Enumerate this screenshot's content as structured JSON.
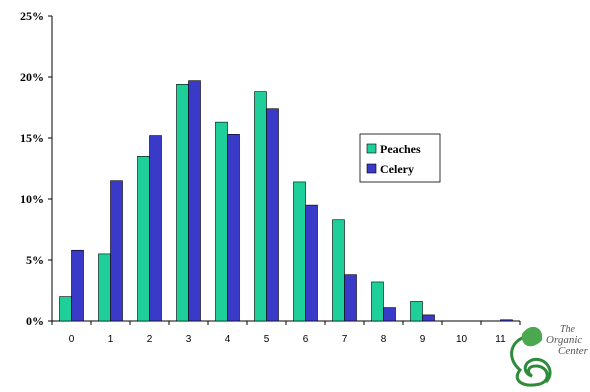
{
  "chart_data": {
    "type": "bar",
    "categories": [
      "0",
      "1",
      "2",
      "3",
      "4",
      "5",
      "6",
      "7",
      "8",
      "9",
      "10",
      "11"
    ],
    "series": [
      {
        "name": "Peaches",
        "color": "#1ecf9a",
        "values": [
          2.0,
          5.5,
          13.5,
          19.4,
          16.3,
          18.8,
          11.4,
          8.3,
          3.2,
          1.6,
          0,
          0
        ]
      },
      {
        "name": "Celery",
        "color": "#3a3ac8",
        "values": [
          5.8,
          11.5,
          15.2,
          19.7,
          15.3,
          17.4,
          9.5,
          3.8,
          1.1,
          0.5,
          0,
          0.1
        ]
      }
    ],
    "ylim": [
      0,
      25
    ],
    "yticks": [
      0,
      5,
      10,
      15,
      20,
      25
    ],
    "ytick_labels": [
      "0%",
      "5%",
      "10%",
      "15%",
      "20%",
      "25%"
    ],
    "legend_placement": "center-right",
    "grid": false
  },
  "logo": {
    "line1": "The",
    "line2": "Organic",
    "line3": "Center"
  }
}
